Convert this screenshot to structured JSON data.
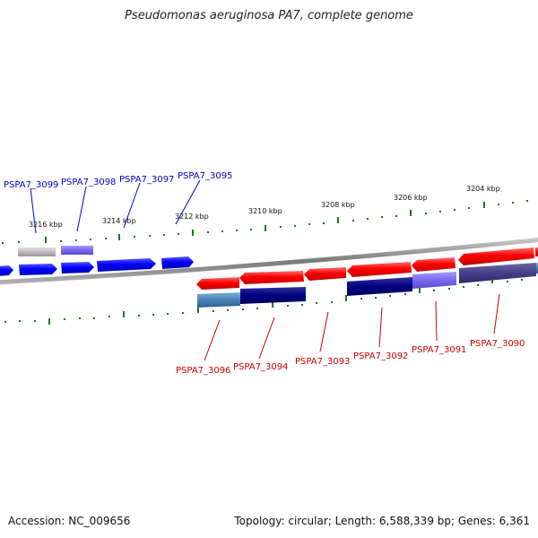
{
  "title": "Pseudomonas aeruginosa PA7, complete genome",
  "footer": {
    "accession": "Accession: NC_009656",
    "topology": "Topology: circular; Length: 6,588,339 bp; Genes: 6,361"
  },
  "colors": {
    "forward_strand": "#0000ff",
    "reverse_strand": "#ff0000",
    "tick": "#1a7a1a",
    "backbone": "#808080",
    "navy": "#000080",
    "steel": "#4682b4",
    "slate": "#7b68ee",
    "grey": "#bbbbbb"
  },
  "scale_labels": [
    "3216 kbp",
    "3214 kbp",
    "3212 kbp",
    "3210 kbp",
    "3208 kbp",
    "3206 kbp",
    "3204 kbp"
  ],
  "genes_forward": [
    {
      "label": "PSPA7_3099",
      "color": "#0000ff"
    },
    {
      "label": "PSPA7_3098",
      "color": "#0000ff"
    },
    {
      "label": "PSPA7_3097",
      "color": "#0000ff"
    },
    {
      "label": "PSPA7_3095",
      "color": "#0000ff"
    }
  ],
  "genes_reverse": [
    {
      "label": "PSPA7_3096",
      "color": "#cc0000"
    },
    {
      "label": "PSPA7_3094",
      "color": "#cc0000"
    },
    {
      "label": "PSPA7_3093",
      "color": "#cc0000"
    },
    {
      "label": "PSPA7_3092",
      "color": "#cc0000"
    },
    {
      "label": "PSPA7_3091",
      "color": "#cc0000"
    },
    {
      "label": "PSPA7_3090",
      "color": "#cc0000"
    }
  ]
}
